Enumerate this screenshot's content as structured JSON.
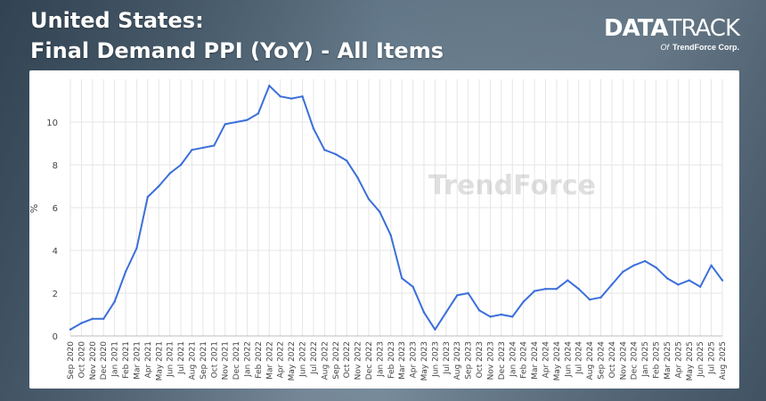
{
  "header": {
    "title_line1": "United States:",
    "title_line2": "Final Demand PPI (YoY) - All Items"
  },
  "brand": {
    "logo_part1": "DATA",
    "logo_part2": "TRACK",
    "of_label": "Of",
    "company": "TrendForce Corp."
  },
  "watermark": "TrendForce",
  "colors": {
    "line": "#3b6fd9",
    "grid": "#e6e6e6",
    "title": "#ffffff"
  },
  "chart_data": {
    "type": "line",
    "title": "",
    "xlabel": "",
    "ylabel": "%",
    "ylim": [
      0,
      12
    ],
    "yticks": [
      0,
      2,
      4,
      6,
      8,
      10
    ],
    "grid": true,
    "legend": "none",
    "categories": [
      "Sep 2020",
      "Oct 2020",
      "Nov 2020",
      "Dec 2020",
      "Jan 2021",
      "Feb 2021",
      "Mar 2021",
      "Apr 2021",
      "May 2021",
      "Jun 2021",
      "Jul 2021",
      "Aug 2021",
      "Sep 2021",
      "Oct 2021",
      "Nov 2021",
      "Dec 2021",
      "Jan 2022",
      "Feb 2022",
      "Mar 2022",
      "Apr 2022",
      "May 2022",
      "Jun 2022",
      "Jul 2022",
      "Aug 2022",
      "Sep 2022",
      "Oct 2022",
      "Nov 2022",
      "Dec 2022",
      "Jan 2023",
      "Feb 2023",
      "Mar 2023",
      "Apr 2023",
      "May 2023",
      "Jun 2023",
      "Jul 2023",
      "Aug 2023",
      "Sep 2023",
      "Oct 2023",
      "Nov 2023",
      "Dec 2023",
      "Jan 2024",
      "Feb 2024",
      "Mar 2024",
      "Apr 2024",
      "May 2024",
      "Jun 2024",
      "Jul 2024",
      "Aug 2024",
      "Sep 2024",
      "Oct 2024",
      "Nov 2024",
      "Dec 2024",
      "Jan 2025",
      "Feb 2025",
      "Mar 2025",
      "Apr 2025",
      "May 2025",
      "Jun 2025",
      "Jul 2025",
      "Aug 2025"
    ],
    "series": [
      {
        "values": [
          0.3,
          0.6,
          0.8,
          0.8,
          1.6,
          3.0,
          4.1,
          6.5,
          7.0,
          7.6,
          8.0,
          8.7,
          8.8,
          8.9,
          9.9,
          10.0,
          10.1,
          10.4,
          11.7,
          11.2,
          11.1,
          11.2,
          9.7,
          8.7,
          8.5,
          8.2,
          7.4,
          6.4,
          5.8,
          4.7,
          2.7,
          2.3,
          1.1,
          0.3,
          1.1,
          1.9,
          2.0,
          1.2,
          0.9,
          1.0,
          0.9,
          1.6,
          2.1,
          2.2,
          2.2,
          2.6,
          2.2,
          1.7,
          1.8,
          2.4,
          3.0,
          3.3,
          3.5,
          3.2,
          2.7,
          2.4,
          2.6,
          2.3,
          3.3,
          2.6
        ]
      }
    ]
  }
}
